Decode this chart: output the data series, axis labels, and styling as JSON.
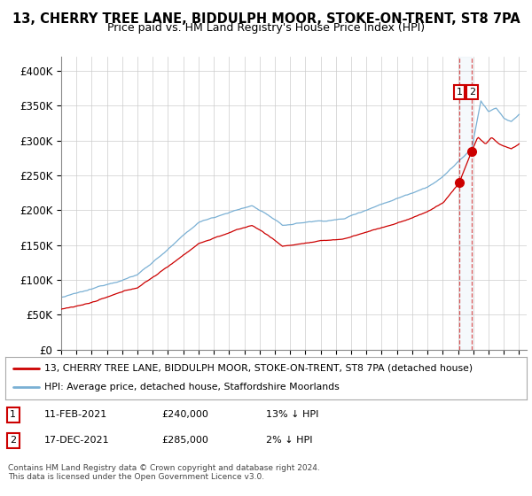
{
  "title": "13, CHERRY TREE LANE, BIDDULPH MOOR, STOKE-ON-TRENT, ST8 7PA",
  "subtitle": "Price paid vs. HM Land Registry's House Price Index (HPI)",
  "ylim": [
    0,
    420000
  ],
  "yticks": [
    0,
    50000,
    100000,
    150000,
    200000,
    250000,
    300000,
    350000,
    400000
  ],
  "ytick_labels": [
    "£0",
    "£50K",
    "£100K",
    "£150K",
    "£200K",
    "£250K",
    "£300K",
    "£350K",
    "£400K"
  ],
  "legend_line1": "13, CHERRY TREE LANE, BIDDULPH MOOR, STOKE-ON-TRENT, ST8 7PA (detached house)",
  "legend_line2": "HPI: Average price, detached house, Staffordshire Moorlands",
  "red_color": "#cc0000",
  "blue_color": "#7ab0d4",
  "transaction1_date": "11-FEB-2021",
  "transaction1_price": 240000,
  "transaction1_label": "13% ↓ HPI",
  "transaction2_date": "17-DEC-2021",
  "transaction2_price": 285000,
  "transaction2_label": "2% ↓ HPI",
  "footnote": "Contains HM Land Registry data © Crown copyright and database right 2024.\nThis data is licensed under the Open Government Licence v3.0.",
  "background_color": "#ffffff",
  "plot_bg_color": "#ffffff",
  "grid_color": "#cccccc",
  "shade_color": "#cce0f0"
}
